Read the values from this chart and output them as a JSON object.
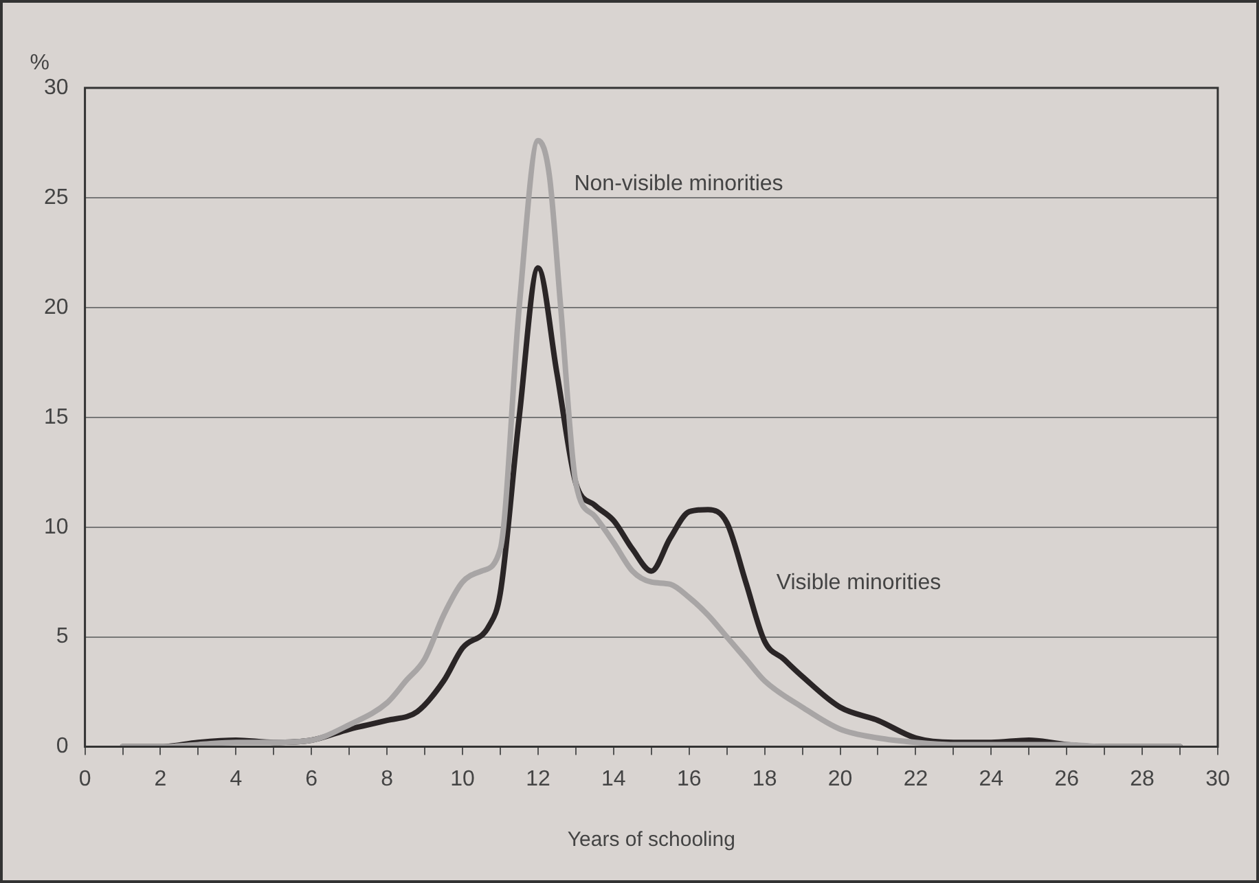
{
  "chart_data": {
    "type": "line",
    "xlabel": "Years of schooling",
    "ylabel": "%",
    "xlim": [
      0,
      30
    ],
    "xticks": [
      0,
      {
        "value": 1,
        "label": null
      },
      2,
      {
        "value": 3,
        "label": null
      },
      4,
      {
        "value": 5,
        "label": null
      },
      6,
      {
        "value": 7,
        "label": null
      },
      8,
      {
        "value": 9,
        "label": null
      },
      10,
      {
        "value": 11,
        "label": null
      },
      12,
      {
        "value": 13,
        "label": null
      },
      14,
      {
        "value": 15,
        "label": null
      },
      16,
      {
        "value": 17,
        "label": null
      },
      18,
      {
        "value": 19,
        "label": null
      },
      20,
      {
        "value": 21,
        "label": null
      },
      22,
      {
        "value": 23,
        "label": null
      },
      24,
      {
        "value": 25,
        "label": null
      },
      26,
      {
        "value": 27,
        "label": null
      },
      28,
      {
        "value": 29,
        "label": null
      },
      30
    ],
    "ylim": [
      0,
      30
    ],
    "yticks": [
      0,
      5,
      10,
      15,
      20,
      25,
      30
    ],
    "grid": "y",
    "legend": false,
    "marker": "none",
    "line_style": "solid",
    "series": [
      {
        "name": "Non-visible minorities",
        "color": "#a8a5a5",
        "x": [
          1,
          2,
          3,
          4,
          5,
          6,
          7,
          8,
          8.5,
          9,
          9.5,
          10,
          10.5,
          11,
          11.5,
          12,
          12.3,
          12.6,
          13,
          13.5,
          14,
          14.5,
          15,
          15.5,
          16,
          16.5,
          17,
          17.5,
          18,
          19,
          20,
          21,
          22,
          23,
          24,
          25,
          26,
          27,
          28,
          29
        ],
        "values": [
          0,
          0,
          0.1,
          0.2,
          0.2,
          0.3,
          1,
          2,
          3,
          4,
          6,
          7.5,
          8,
          9,
          20,
          27.6,
          26,
          20,
          12,
          10.5,
          9.3,
          8,
          7.5,
          7.4,
          6.8,
          6,
          5,
          4,
          3,
          1.8,
          0.8,
          0.4,
          0.2,
          0.1,
          0.1,
          0.1,
          0.1,
          0,
          0,
          0
        ]
      },
      {
        "name": "Visible minorities",
        "color": "#2a2526",
        "x": [
          1,
          2,
          3,
          4,
          5,
          6,
          7,
          8,
          8.8,
          9.5,
          10,
          10.7,
          11,
          11.5,
          12,
          12.5,
          13,
          13.5,
          14,
          14.5,
          15,
          15.5,
          16,
          16.5,
          17,
          17.5,
          18,
          18.5,
          19,
          20,
          21,
          22,
          23,
          24,
          25,
          26,
          27,
          28,
          29
        ],
        "values": [
          0,
          0,
          0.2,
          0.3,
          0.2,
          0.3,
          0.8,
          1.2,
          1.6,
          3,
          4.5,
          5.5,
          7,
          15,
          21.8,
          17,
          12,
          11,
          10.3,
          9,
          8,
          9.5,
          10.7,
          10.8,
          10.2,
          7.5,
          4.8,
          4,
          3.2,
          1.8,
          1.2,
          0.4,
          0.2,
          0.2,
          0.3,
          0.1,
          0,
          0,
          0
        ]
      }
    ]
  }
}
